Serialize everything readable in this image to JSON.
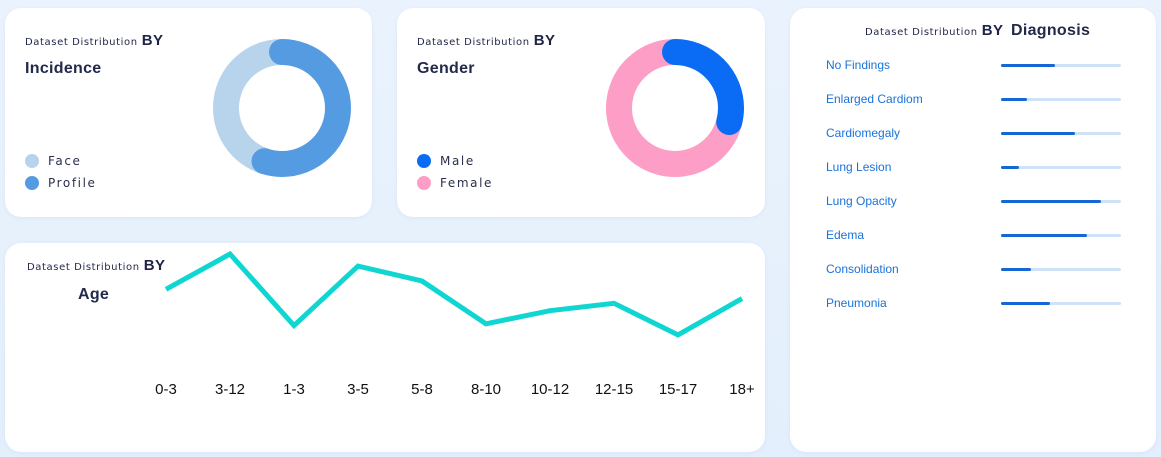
{
  "incidence": {
    "prefix": "Dataset Distribution",
    "by": "BY",
    "title": "Incidence",
    "legend": [
      {
        "label": "Face",
        "color": "#b8d4ec"
      },
      {
        "label": "Profile",
        "color": "#559be2"
      }
    ]
  },
  "gender": {
    "prefix": "Dataset Distribution",
    "by": "BY",
    "title": "Gender",
    "legend": [
      {
        "label": "Male",
        "color": "#0a6cf5"
      },
      {
        "label": "Female",
        "color": "#fd9ec7"
      }
    ]
  },
  "age": {
    "prefix": "Dataset Distribution",
    "by": "BY",
    "title": "Age"
  },
  "diagnosis": {
    "prefix": "Dataset Distribution",
    "by": "BY",
    "title": "Diagnosis",
    "items": [
      {
        "label": "No Findings",
        "value": 0.45
      },
      {
        "label": "Enlarged Cardiom",
        "value": 0.22
      },
      {
        "label": "Cardiomegaly",
        "value": 0.62
      },
      {
        "label": "Lung Lesion",
        "value": 0.15
      },
      {
        "label": "Lung Opacity",
        "value": 0.83
      },
      {
        "label": "Edema",
        "value": 0.72
      },
      {
        "label": "Consolidation",
        "value": 0.25
      },
      {
        "label": "Pneumonia",
        "value": 0.41
      }
    ]
  },
  "chart_data": [
    {
      "type": "pie",
      "variant": "donut",
      "categories": [
        "Face",
        "Profile"
      ],
      "values": [
        45,
        55
      ],
      "colors": [
        "#b8d4ec",
        "#559be2"
      ]
    },
    {
      "type": "pie",
      "variant": "donut",
      "categories": [
        "Male",
        "Female"
      ],
      "values": [
        29,
        71
      ],
      "colors": [
        "#0a6cf5",
        "#fd9ec7"
      ]
    },
    {
      "type": "line",
      "categories": [
        "0-3",
        "3-12",
        "1-3",
        "3-5",
        "5-8",
        "8-10",
        "10-12",
        "12-15",
        "15-17",
        "18+"
      ],
      "values": [
        62,
        100,
        23,
        87,
        71,
        25,
        39,
        47,
        13,
        52
      ],
      "ylim": [
        0,
        100
      ],
      "color": "#10d6d1",
      "grid": false
    },
    {
      "type": "bar",
      "orientation": "horizontal",
      "categories": [
        "No Findings",
        "Enlarged Cardiom",
        "Cardiomegaly",
        "Lung Lesion",
        "Lung Opacity",
        "Edema",
        "Consolidation",
        "Pneumonia"
      ],
      "values": [
        0.45,
        0.22,
        0.62,
        0.15,
        0.83,
        0.72,
        0.25,
        0.41
      ],
      "ylim": [
        0,
        1
      ]
    }
  ]
}
